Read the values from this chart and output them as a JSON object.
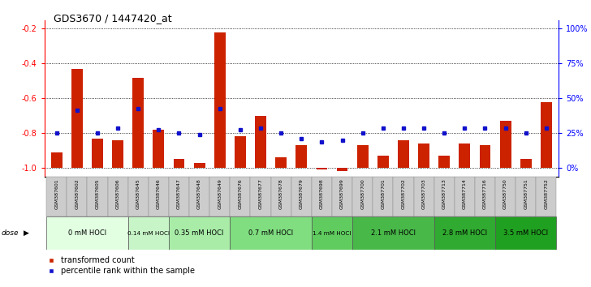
{
  "title": "GDS3670 / 1447420_at",
  "samples": [
    "GSM387601",
    "GSM387602",
    "GSM387605",
    "GSM387606",
    "GSM387645",
    "GSM387646",
    "GSM387647",
    "GSM387648",
    "GSM387649",
    "GSM387676",
    "GSM387677",
    "GSM387678",
    "GSM387679",
    "GSM387698",
    "GSM387699",
    "GSM387700",
    "GSM387701",
    "GSM387702",
    "GSM387703",
    "GSM387713",
    "GSM387714",
    "GSM387716",
    "GSM387750",
    "GSM387751",
    "GSM387752"
  ],
  "red_values": [
    -0.91,
    -0.43,
    -0.83,
    -0.84,
    -0.48,
    -0.78,
    -0.95,
    -0.97,
    -0.22,
    -0.82,
    -0.7,
    -0.94,
    -0.87,
    -1.01,
    -1.02,
    -0.87,
    -0.93,
    -0.84,
    -0.86,
    -0.93,
    -0.86,
    -0.87,
    -0.73,
    -0.95,
    -0.62
  ],
  "blue_values": [
    -0.8,
    -0.67,
    -0.8,
    -0.77,
    -0.66,
    -0.78,
    -0.8,
    -0.81,
    -0.66,
    -0.78,
    -0.77,
    -0.8,
    -0.83,
    -0.85,
    -0.84,
    -0.8,
    -0.77,
    -0.77,
    -0.77,
    -0.8,
    -0.77,
    -0.77,
    -0.77,
    -0.8,
    -0.77
  ],
  "dose_groups": [
    {
      "label": "0 mM HOCl",
      "start": 0,
      "end": 4,
      "color": "#e2ffe2"
    },
    {
      "label": "0.14 mM HOCl",
      "start": 4,
      "end": 6,
      "color": "#c8f5c8"
    },
    {
      "label": "0.35 mM HOCl",
      "start": 6,
      "end": 9,
      "color": "#a8eca8"
    },
    {
      "label": "0.7 mM HOCl",
      "start": 9,
      "end": 13,
      "color": "#80dd80"
    },
    {
      "label": "1.4 mM HOCl",
      "start": 13,
      "end": 15,
      "color": "#60cc60"
    },
    {
      "label": "2.1 mM HOCl",
      "start": 15,
      "end": 19,
      "color": "#48b848"
    },
    {
      "label": "2.8 mM HOCl",
      "start": 19,
      "end": 22,
      "color": "#30aa30"
    },
    {
      "label": "3.5 mM HOCl",
      "start": 22,
      "end": 25,
      "color": "#20a020"
    }
  ],
  "ymin": -1.05,
  "ymax": -0.15,
  "bar_bottom": -1.0,
  "yticks_left": [
    -1.0,
    -0.8,
    -0.6,
    -0.4,
    -0.2
  ],
  "yticks_right_pct": [
    0,
    25,
    50,
    75,
    100
  ],
  "red_color": "#cc2200",
  "blue_color": "#1111cc",
  "bar_width": 0.55,
  "title_fontsize": 9,
  "tick_fontsize": 6,
  "dose_fontsize": 6,
  "legend_fontsize": 7
}
